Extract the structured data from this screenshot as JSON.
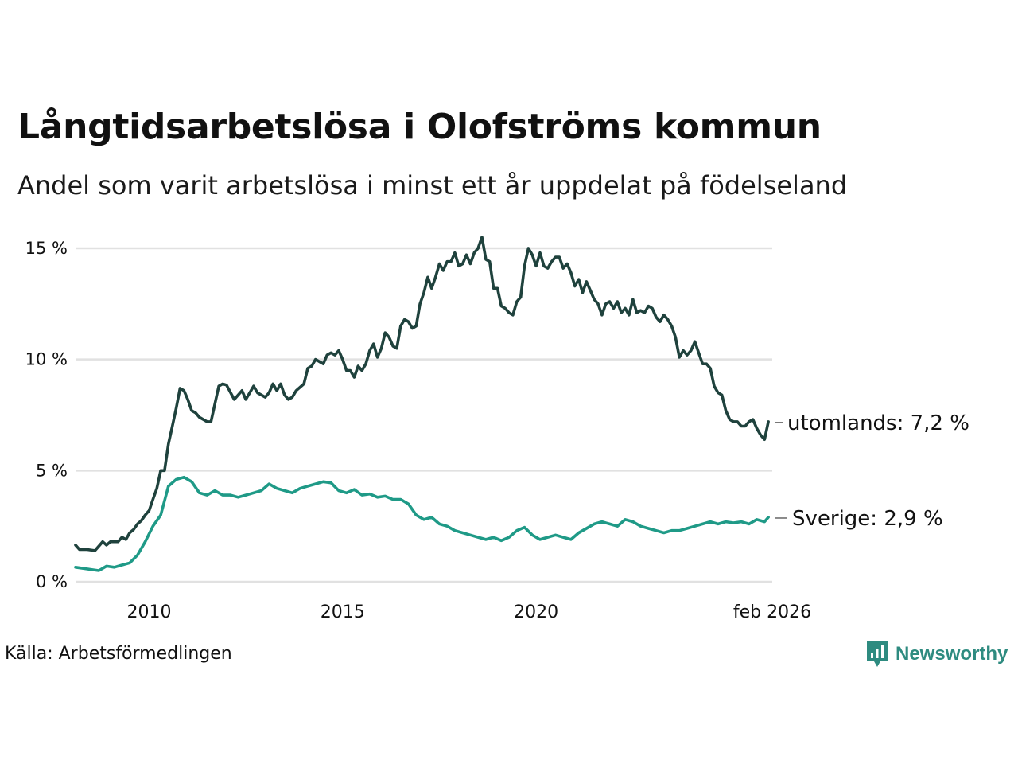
{
  "title": "Långtidsarbetslösa i Olofströms kommun",
  "subtitle": "Andel som varit arbetslösa i minst ett år uppdelat på födelseland",
  "source": "Källa: Arbetsförmedlingen",
  "brand": {
    "name": "Newsworthy",
    "icon": "newsworthy-logo-icon"
  },
  "colors": {
    "utomlands": "#1f423d",
    "sverige": "#1f9a87",
    "grid": "#e1e1e1"
  },
  "chart_data": {
    "type": "line",
    "xlim": [
      2008.1,
      2026.1
    ],
    "ylim": [
      0,
      15.5
    ],
    "y_ticks": [
      {
        "value": 0,
        "label": "0 %"
      },
      {
        "value": 5,
        "label": "5 %"
      },
      {
        "value": 10,
        "label": "10 %"
      },
      {
        "value": 15,
        "label": "15 %"
      }
    ],
    "x_ticks": [
      {
        "value": 2010,
        "label": "2010"
      },
      {
        "value": 2015,
        "label": "2015"
      },
      {
        "value": 2020,
        "label": "2020"
      },
      {
        "value": 2026.1,
        "label": "feb 2026"
      }
    ],
    "series": [
      {
        "name": "utomlands",
        "end_label": "utomlands: 7,2 %",
        "color": "#1f423d",
        "points": [
          [
            2008.1,
            1.65
          ],
          [
            2008.2,
            1.45
          ],
          [
            2008.4,
            1.45
          ],
          [
            2008.6,
            1.4
          ],
          [
            2008.8,
            1.8
          ],
          [
            2008.9,
            1.65
          ],
          [
            2009.0,
            1.8
          ],
          [
            2009.2,
            1.8
          ],
          [
            2009.3,
            2.0
          ],
          [
            2009.4,
            1.9
          ],
          [
            2009.5,
            2.2
          ],
          [
            2009.6,
            2.35
          ],
          [
            2009.7,
            2.6
          ],
          [
            2009.8,
            2.75
          ],
          [
            2009.9,
            3.0
          ],
          [
            2010.0,
            3.2
          ],
          [
            2010.1,
            3.7
          ],
          [
            2010.2,
            4.2
          ],
          [
            2010.3,
            5.0
          ],
          [
            2010.4,
            5.0
          ],
          [
            2010.5,
            6.2
          ],
          [
            2010.6,
            7.0
          ],
          [
            2010.7,
            7.8
          ],
          [
            2010.8,
            8.7
          ],
          [
            2010.9,
            8.6
          ],
          [
            2011.0,
            8.2
          ],
          [
            2011.1,
            7.7
          ],
          [
            2011.2,
            7.6
          ],
          [
            2011.3,
            7.4
          ],
          [
            2011.5,
            7.2
          ],
          [
            2011.6,
            7.2
          ],
          [
            2011.7,
            8.0
          ],
          [
            2011.8,
            8.8
          ],
          [
            2011.9,
            8.9
          ],
          [
            2012.0,
            8.85
          ],
          [
            2012.2,
            8.2
          ],
          [
            2012.4,
            8.6
          ],
          [
            2012.5,
            8.2
          ],
          [
            2012.7,
            8.8
          ],
          [
            2012.8,
            8.5
          ],
          [
            2013.0,
            8.3
          ],
          [
            2013.1,
            8.5
          ],
          [
            2013.2,
            8.9
          ],
          [
            2013.3,
            8.6
          ],
          [
            2013.4,
            8.9
          ],
          [
            2013.5,
            8.4
          ],
          [
            2013.6,
            8.2
          ],
          [
            2013.7,
            8.3
          ],
          [
            2013.8,
            8.6
          ],
          [
            2014.0,
            8.9
          ],
          [
            2014.1,
            9.6
          ],
          [
            2014.2,
            9.7
          ],
          [
            2014.3,
            10.0
          ],
          [
            2014.5,
            9.8
          ],
          [
            2014.6,
            10.2
          ],
          [
            2014.7,
            10.3
          ],
          [
            2014.8,
            10.2
          ],
          [
            2014.9,
            10.4
          ],
          [
            2015.0,
            10.0
          ],
          [
            2015.1,
            9.5
          ],
          [
            2015.2,
            9.5
          ],
          [
            2015.3,
            9.2
          ],
          [
            2015.4,
            9.7
          ],
          [
            2015.5,
            9.5
          ],
          [
            2015.6,
            9.8
          ],
          [
            2015.7,
            10.4
          ],
          [
            2015.8,
            10.7
          ],
          [
            2015.9,
            10.1
          ],
          [
            2016.0,
            10.5
          ],
          [
            2016.1,
            11.2
          ],
          [
            2016.2,
            11.0
          ],
          [
            2016.3,
            10.6
          ],
          [
            2016.4,
            10.5
          ],
          [
            2016.5,
            11.5
          ],
          [
            2016.6,
            11.8
          ],
          [
            2016.7,
            11.7
          ],
          [
            2016.8,
            11.4
          ],
          [
            2016.9,
            11.5
          ],
          [
            2017.0,
            12.5
          ],
          [
            2017.1,
            13.0
          ],
          [
            2017.2,
            13.7
          ],
          [
            2017.3,
            13.2
          ],
          [
            2017.4,
            13.7
          ],
          [
            2017.5,
            14.3
          ],
          [
            2017.6,
            14.0
          ],
          [
            2017.7,
            14.4
          ],
          [
            2017.8,
            14.4
          ],
          [
            2017.9,
            14.8
          ],
          [
            2018.0,
            14.2
          ],
          [
            2018.1,
            14.3
          ],
          [
            2018.2,
            14.7
          ],
          [
            2018.3,
            14.3
          ],
          [
            2018.4,
            14.8
          ],
          [
            2018.5,
            15.0
          ],
          [
            2018.6,
            15.5
          ],
          [
            2018.7,
            14.5
          ],
          [
            2018.8,
            14.4
          ],
          [
            2018.9,
            13.2
          ],
          [
            2019.0,
            13.2
          ],
          [
            2019.1,
            12.4
          ],
          [
            2019.2,
            12.3
          ],
          [
            2019.3,
            12.1
          ],
          [
            2019.4,
            12.0
          ],
          [
            2019.5,
            12.6
          ],
          [
            2019.6,
            12.8
          ],
          [
            2019.7,
            14.2
          ],
          [
            2019.8,
            15.0
          ],
          [
            2019.9,
            14.7
          ],
          [
            2020.0,
            14.2
          ],
          [
            2020.1,
            14.8
          ],
          [
            2020.2,
            14.2
          ],
          [
            2020.3,
            14.1
          ],
          [
            2020.4,
            14.4
          ],
          [
            2020.5,
            14.6
          ],
          [
            2020.6,
            14.6
          ],
          [
            2020.7,
            14.1
          ],
          [
            2020.8,
            14.3
          ],
          [
            2020.9,
            13.9
          ],
          [
            2021.0,
            13.3
          ],
          [
            2021.1,
            13.6
          ],
          [
            2021.2,
            13.0
          ],
          [
            2021.3,
            13.5
          ],
          [
            2021.4,
            13.1
          ],
          [
            2021.5,
            12.7
          ],
          [
            2021.6,
            12.5
          ],
          [
            2021.7,
            12.0
          ],
          [
            2021.8,
            12.5
          ],
          [
            2021.9,
            12.6
          ],
          [
            2022.0,
            12.3
          ],
          [
            2022.1,
            12.6
          ],
          [
            2022.2,
            12.1
          ],
          [
            2022.3,
            12.3
          ],
          [
            2022.4,
            12.0
          ],
          [
            2022.5,
            12.7
          ],
          [
            2022.6,
            12.1
          ],
          [
            2022.7,
            12.2
          ],
          [
            2022.8,
            12.1
          ],
          [
            2022.9,
            12.4
          ],
          [
            2023.0,
            12.3
          ],
          [
            2023.1,
            11.9
          ],
          [
            2023.2,
            11.7
          ],
          [
            2023.3,
            12.0
          ],
          [
            2023.4,
            11.8
          ],
          [
            2023.5,
            11.5
          ],
          [
            2023.6,
            11.0
          ],
          [
            2023.7,
            10.1
          ],
          [
            2023.8,
            10.4
          ],
          [
            2023.9,
            10.2
          ],
          [
            2024.0,
            10.4
          ],
          [
            2024.1,
            10.8
          ],
          [
            2024.2,
            10.3
          ],
          [
            2024.3,
            9.8
          ],
          [
            2024.4,
            9.8
          ],
          [
            2024.5,
            9.6
          ],
          [
            2024.6,
            8.8
          ],
          [
            2024.7,
            8.5
          ],
          [
            2024.8,
            8.4
          ],
          [
            2024.9,
            7.7
          ],
          [
            2025.0,
            7.3
          ],
          [
            2025.1,
            7.2
          ],
          [
            2025.2,
            7.2
          ],
          [
            2025.3,
            7.0
          ],
          [
            2025.4,
            7.0
          ],
          [
            2025.5,
            7.2
          ],
          [
            2025.6,
            7.3
          ],
          [
            2025.7,
            6.9
          ],
          [
            2025.8,
            6.6
          ],
          [
            2025.9,
            6.4
          ],
          [
            2026.0,
            7.2
          ]
        ]
      },
      {
        "name": "Sverige",
        "end_label": "Sverige: 2,9 %",
        "color": "#1f9a87",
        "points": [
          [
            2008.1,
            0.65
          ],
          [
            2008.3,
            0.6
          ],
          [
            2008.5,
            0.55
          ],
          [
            2008.7,
            0.5
          ],
          [
            2008.9,
            0.7
          ],
          [
            2009.1,
            0.65
          ],
          [
            2009.3,
            0.75
          ],
          [
            2009.5,
            0.85
          ],
          [
            2009.7,
            1.2
          ],
          [
            2009.9,
            1.8
          ],
          [
            2010.1,
            2.5
          ],
          [
            2010.3,
            3.0
          ],
          [
            2010.5,
            4.3
          ],
          [
            2010.7,
            4.6
          ],
          [
            2010.9,
            4.7
          ],
          [
            2011.1,
            4.5
          ],
          [
            2011.3,
            4.0
          ],
          [
            2011.5,
            3.9
          ],
          [
            2011.7,
            4.1
          ],
          [
            2011.9,
            3.9
          ],
          [
            2012.1,
            3.9
          ],
          [
            2012.3,
            3.8
          ],
          [
            2012.5,
            3.9
          ],
          [
            2012.7,
            4.0
          ],
          [
            2012.9,
            4.1
          ],
          [
            2013.1,
            4.4
          ],
          [
            2013.3,
            4.2
          ],
          [
            2013.5,
            4.1
          ],
          [
            2013.7,
            4.0
          ],
          [
            2013.9,
            4.2
          ],
          [
            2014.1,
            4.3
          ],
          [
            2014.3,
            4.4
          ],
          [
            2014.5,
            4.5
          ],
          [
            2014.7,
            4.45
          ],
          [
            2014.9,
            4.1
          ],
          [
            2015.1,
            4.0
          ],
          [
            2015.3,
            4.15
          ],
          [
            2015.5,
            3.9
          ],
          [
            2015.7,
            3.95
          ],
          [
            2015.9,
            3.8
          ],
          [
            2016.1,
            3.85
          ],
          [
            2016.3,
            3.7
          ],
          [
            2016.5,
            3.7
          ],
          [
            2016.7,
            3.5
          ],
          [
            2016.9,
            3.0
          ],
          [
            2017.1,
            2.8
          ],
          [
            2017.3,
            2.9
          ],
          [
            2017.5,
            2.6
          ],
          [
            2017.7,
            2.5
          ],
          [
            2017.9,
            2.3
          ],
          [
            2018.1,
            2.2
          ],
          [
            2018.3,
            2.1
          ],
          [
            2018.5,
            2.0
          ],
          [
            2018.7,
            1.9
          ],
          [
            2018.9,
            2.0
          ],
          [
            2019.1,
            1.85
          ],
          [
            2019.3,
            2.0
          ],
          [
            2019.5,
            2.3
          ],
          [
            2019.7,
            2.45
          ],
          [
            2019.9,
            2.1
          ],
          [
            2020.1,
            1.9
          ],
          [
            2020.3,
            2.0
          ],
          [
            2020.5,
            2.1
          ],
          [
            2020.7,
            2.0
          ],
          [
            2020.9,
            1.9
          ],
          [
            2021.1,
            2.2
          ],
          [
            2021.3,
            2.4
          ],
          [
            2021.5,
            2.6
          ],
          [
            2021.7,
            2.7
          ],
          [
            2021.9,
            2.6
          ],
          [
            2022.1,
            2.5
          ],
          [
            2022.3,
            2.8
          ],
          [
            2022.5,
            2.7
          ],
          [
            2022.7,
            2.5
          ],
          [
            2022.9,
            2.4
          ],
          [
            2023.1,
            2.3
          ],
          [
            2023.3,
            2.2
          ],
          [
            2023.5,
            2.3
          ],
          [
            2023.7,
            2.3
          ],
          [
            2023.9,
            2.4
          ],
          [
            2024.1,
            2.5
          ],
          [
            2024.3,
            2.6
          ],
          [
            2024.5,
            2.7
          ],
          [
            2024.7,
            2.6
          ],
          [
            2024.9,
            2.7
          ],
          [
            2025.1,
            2.65
          ],
          [
            2025.3,
            2.7
          ],
          [
            2025.5,
            2.6
          ],
          [
            2025.7,
            2.8
          ],
          [
            2025.9,
            2.7
          ],
          [
            2026.0,
            2.9
          ]
        ]
      }
    ]
  }
}
